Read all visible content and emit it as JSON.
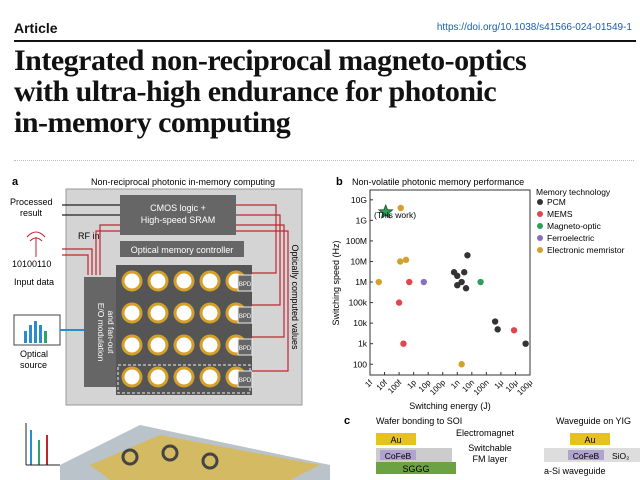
{
  "header": {
    "label": "Article",
    "doi": "https://doi.org/10.1038/s41566-024-01549-1"
  },
  "title": {
    "lines": [
      "Integrated non-reciprocal magneto-optics",
      "with ultra-high endurance for photonic",
      "in-memory computing"
    ]
  },
  "panel_a": {
    "letter": "a",
    "heading": "Non-reciprocal photonic in-memory computing",
    "processed": [
      "Processed",
      "result"
    ],
    "cmos": [
      "CMOS logic +",
      "High-speed SRAM"
    ],
    "rf_in": "RF in",
    "controller": "Optical memory controller",
    "input_bits": "10100110",
    "input_data": "Input data",
    "eo": [
      "E/O modulation",
      "and fan-out"
    ],
    "optical_source": [
      "Optical",
      "source"
    ],
    "bpd": "BPD",
    "side": "Optically computed values"
  },
  "panel_b": {
    "letter": "b",
    "heading": "Non-volatile photonic memory performance",
    "this_work": "(This work)",
    "colors": {
      "PCM": "#333333",
      "MEMS": "#e0474c",
      "Magneto-optic": "#2e9e5b",
      "Ferroelectric": "#8a6fbf",
      "Electronic memristor": "#d4a02c"
    }
  },
  "chart_data": {
    "type": "scatter",
    "xlabel": "Switching energy (J)",
    "ylabel": "Switching speed (Hz)",
    "x_ticks": [
      "1f",
      "10f",
      "100f",
      "1p",
      "10p",
      "100p",
      "1n",
      "10n",
      "100n",
      "1μ",
      "10μ",
      "100μ"
    ],
    "y_ticks": [
      "100",
      "1k",
      "10k",
      "100k",
      "1M",
      "10M",
      "100M",
      "1G",
      "10G"
    ],
    "xlim": [
      1e-15,
      0.0001
    ],
    "ylim": [
      30,
      30000000000.0
    ],
    "legend_title": "Memory technology",
    "legend_position": "right",
    "series": [
      {
        "name": "PCM",
        "points": [
          [
            6e-10,
            3000000.0
          ],
          [
            1e-09,
            2000000.0
          ],
          [
            2e-09,
            1000000.0
          ],
          [
            3e-09,
            3000000.0
          ],
          [
            1e-09,
            700000.0
          ],
          [
            4e-09,
            500000.0
          ],
          [
            5e-09,
            20000000.0
          ],
          [
            4e-07,
            12000.0
          ],
          [
            6e-07,
            5000.0
          ],
          [
            5e-05,
            1000.0
          ]
        ]
      },
      {
        "name": "MEMS",
        "points": [
          [
            1e-13,
            100000.0
          ],
          [
            2e-13,
            1000.0
          ],
          [
            5e-13,
            1000000.0
          ],
          [
            8e-06,
            4500.0
          ]
        ]
      },
      {
        "name": "Magneto-optic",
        "points": [
          [
            1.2e-14,
            2500000000.0
          ],
          [
            4e-08,
            1000000.0
          ]
        ]
      },
      {
        "name": "Ferroelectric",
        "points": [
          [
            5e-12,
            1000000.0
          ]
        ]
      },
      {
        "name": "Electronic memristor",
        "points": [
          [
            4e-15,
            1000000.0
          ],
          [
            1.2e-13,
            10000000.0
          ],
          [
            3e-13,
            12000000.0
          ],
          [
            1.3e-13,
            4000000000.0
          ],
          [
            2e-09,
            100
          ]
        ]
      }
    ]
  },
  "panel_c": {
    "letter": "c",
    "left": "Wafer bonding to SOI",
    "right": "Waveguide on YIG",
    "electromagnet": "Electromagnet",
    "au": "Au",
    "switchable": [
      "Switchable",
      "FM layer"
    ],
    "cofeb": "CoFeB",
    "sio2": "SiO₂",
    "sggg": "SGGG",
    "asi": "a-Si waveguide"
  }
}
